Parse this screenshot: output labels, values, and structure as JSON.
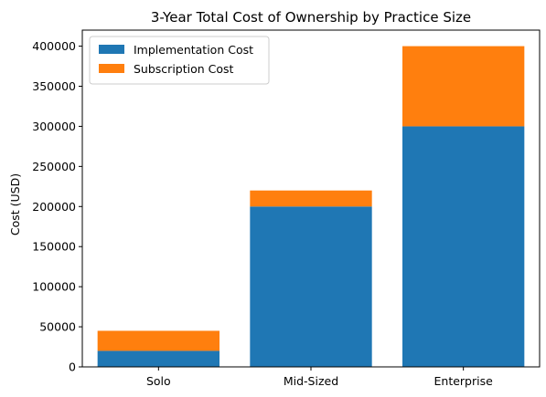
{
  "chart_data": {
    "type": "bar",
    "stacked": true,
    "title": "3-Year Total Cost of Ownership by Practice Size",
    "xlabel": "",
    "ylabel": "Cost (USD)",
    "categories": [
      "Solo",
      "Mid-Sized",
      "Enterprise"
    ],
    "series": [
      {
        "name": "Implementation Cost",
        "color": "#1f77b4",
        "values": [
          20000,
          200000,
          300000
        ]
      },
      {
        "name": "Subscription Cost",
        "color": "#ff7f0e",
        "values": [
          25000,
          20000,
          100000
        ]
      }
    ],
    "ylim": [
      0,
      420000
    ],
    "yticks": [
      0,
      50000,
      100000,
      150000,
      200000,
      250000,
      300000,
      350000,
      400000
    ],
    "grid": false,
    "legend_position": "top-left"
  }
}
